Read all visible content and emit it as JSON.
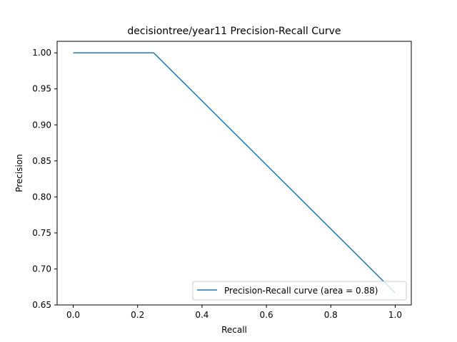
{
  "chart_data": {
    "type": "line",
    "title": "decisiontree/year11 Precision-Recall Curve",
    "xlabel": "Recall",
    "ylabel": "Precision",
    "xlim": [
      -0.05,
      1.05
    ],
    "ylim": [
      0.65,
      1.016
    ],
    "xticks": [
      0.0,
      0.2,
      0.4,
      0.6,
      0.8,
      1.0
    ],
    "xtick_labels": [
      "0.0",
      "0.2",
      "0.4",
      "0.6",
      "0.8",
      "1.0"
    ],
    "yticks": [
      0.65,
      0.7,
      0.75,
      0.8,
      0.85,
      0.9,
      0.95,
      1.0
    ],
    "ytick_labels": [
      "0.65",
      "0.70",
      "0.75",
      "0.80",
      "0.85",
      "0.90",
      "0.95",
      "1.00"
    ],
    "grid": false,
    "legend_position": "lower-right",
    "series": [
      {
        "name": "Precision-Recall curve (area = 0.88)",
        "color": "#1f77b4",
        "x": [
          0.0,
          0.25,
          1.0
        ],
        "y": [
          1.0,
          1.0,
          0.6667
        ]
      }
    ]
  }
}
